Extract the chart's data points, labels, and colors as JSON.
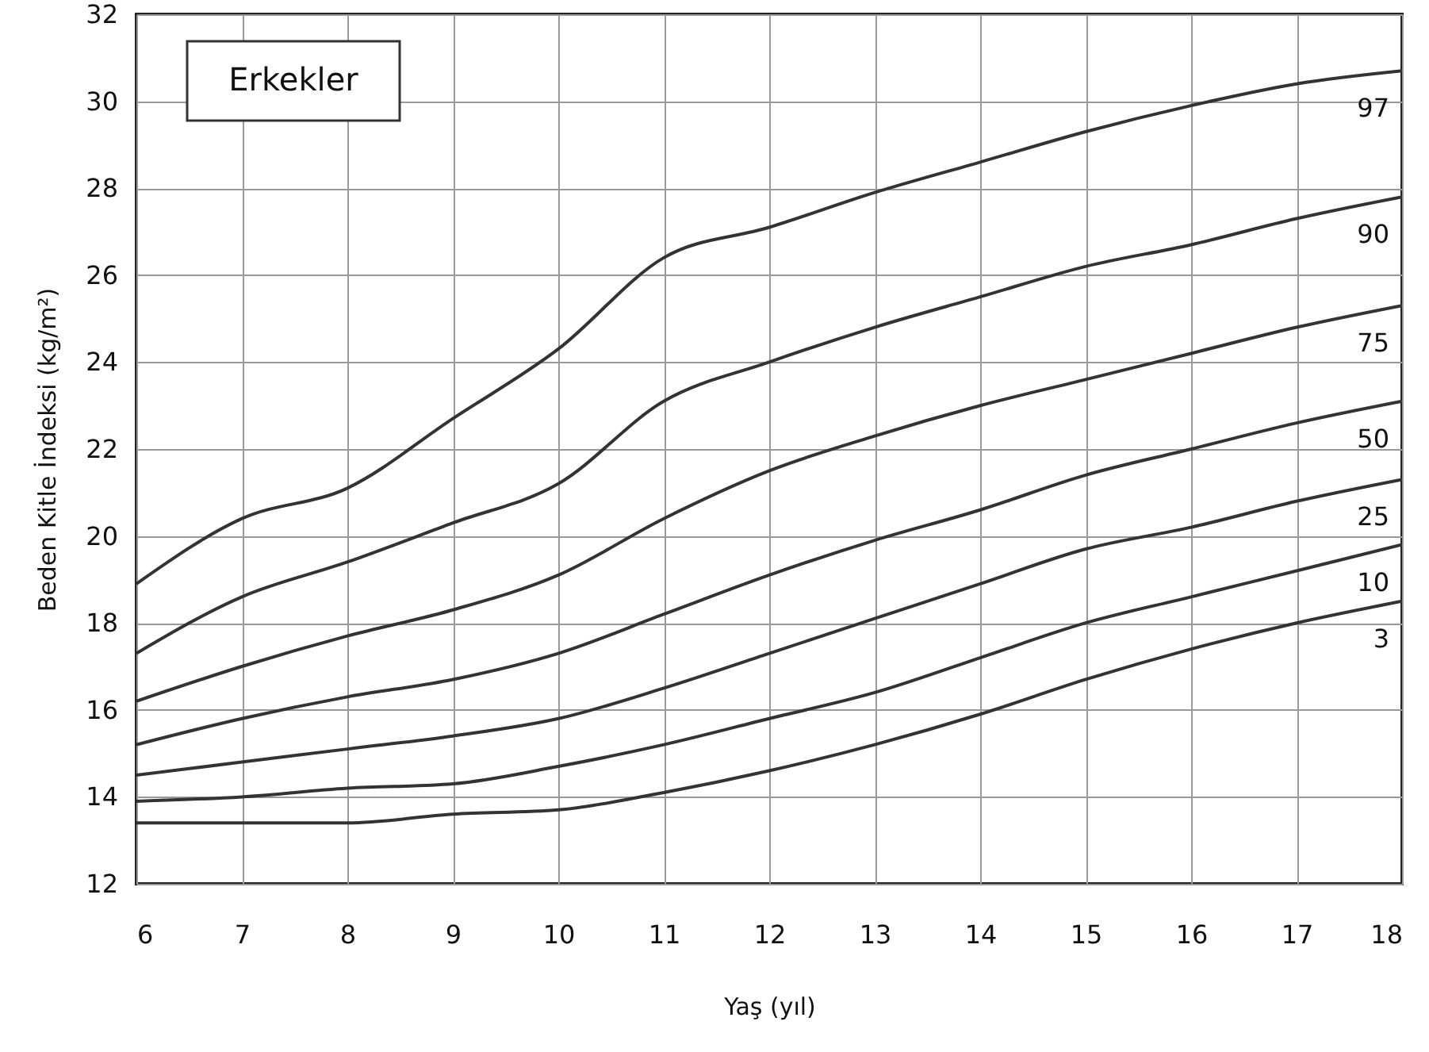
{
  "chart_data": {
    "type": "line",
    "xlabel": "Yaş (yıl)",
    "ylabel": "Beden Kitle İndeksi (kg/m²)",
    "annotations": [
      "Erkekler"
    ],
    "x": [
      6,
      7,
      8,
      9,
      10,
      11,
      12,
      13,
      14,
      15,
      16,
      17,
      18
    ],
    "series": [
      {
        "name": "97",
        "color": "#333333",
        "values": [
          18.9,
          20.4,
          21.1,
          22.7,
          24.3,
          26.4,
          27.1,
          27.9,
          28.6,
          29.3,
          29.9,
          30.4,
          30.7
        ]
      },
      {
        "name": "90",
        "color": "#333333",
        "values": [
          17.3,
          18.6,
          19.4,
          20.3,
          21.2,
          23.1,
          24.0,
          24.8,
          25.5,
          26.2,
          26.7,
          27.3,
          27.8
        ]
      },
      {
        "name": "75",
        "color": "#333333",
        "values": [
          16.2,
          17.0,
          17.7,
          18.3,
          19.1,
          20.4,
          21.5,
          22.3,
          23.0,
          23.6,
          24.2,
          24.8,
          25.3
        ]
      },
      {
        "name": "50",
        "color": "#333333",
        "values": [
          15.2,
          15.8,
          16.3,
          16.7,
          17.3,
          18.2,
          19.1,
          19.9,
          20.6,
          21.4,
          22.0,
          22.6,
          23.1
        ]
      },
      {
        "name": "25",
        "color": "#333333",
        "values": [
          14.5,
          14.8,
          15.1,
          15.4,
          15.8,
          16.5,
          17.3,
          18.1,
          18.9,
          19.7,
          20.2,
          20.8,
          21.3
        ]
      },
      {
        "name": "10",
        "color": "#333333",
        "values": [
          13.9,
          14.0,
          14.2,
          14.3,
          14.7,
          15.2,
          15.8,
          16.4,
          17.2,
          18.0,
          18.6,
          19.2,
          19.8
        ]
      },
      {
        "name": "3",
        "color": "#333333",
        "values": [
          13.4,
          13.4,
          13.4,
          13.6,
          13.7,
          14.1,
          14.6,
          15.2,
          15.9,
          16.7,
          17.4,
          18.0,
          18.5
        ]
      }
    ],
    "xlim": [
      6,
      18
    ],
    "xticks": [
      6,
      7,
      8,
      9,
      10,
      11,
      12,
      13,
      14,
      15,
      16,
      17,
      18
    ],
    "ylim": [
      12,
      32
    ],
    "yticks": [
      12,
      14,
      16,
      18,
      20,
      22,
      24,
      26,
      28,
      30,
      32
    ],
    "grid": true,
    "legend": false,
    "marker": "none",
    "line_style": "solid"
  }
}
